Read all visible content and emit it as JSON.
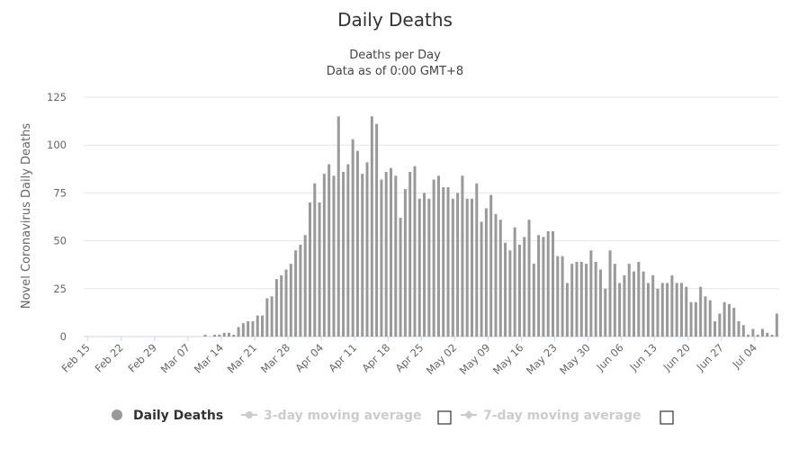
{
  "chart_data": {
    "type": "bar",
    "title": "Daily Deaths",
    "subtitle": [
      "Deaths per Day",
      "Data as of 0:00 GMT+8"
    ],
    "ylabel": "Novel Coronavirus Daily Deaths",
    "xlabel": "",
    "ylim": [
      0,
      125
    ],
    "yticks": [
      0,
      25,
      50,
      75,
      100,
      125
    ],
    "grid": true,
    "bar_color": "#999999",
    "start_date": "Feb 15",
    "xtick_labels": [
      "Feb 15",
      "Feb 22",
      "Feb 29",
      "Mar 07",
      "Mar 14",
      "Mar 21",
      "Mar 28",
      "Apr 04",
      "Apr 11",
      "Apr 18",
      "Apr 25",
      "May 02",
      "May 09",
      "May 16",
      "May 23",
      "May 30",
      "Jun 06",
      "Jun 13",
      "Jun 20",
      "Jun 27",
      "Jul 04"
    ],
    "series": [
      {
        "name": "Daily Deaths",
        "visible": true,
        "values": [
          0,
          0,
          0,
          0,
          0,
          0,
          0,
          0,
          0,
          0,
          0,
          0,
          0,
          0,
          0,
          0,
          0,
          0,
          0,
          0,
          0,
          0,
          0,
          0,
          0,
          1,
          0,
          1,
          1,
          2,
          2,
          1,
          5,
          7,
          8,
          8,
          11,
          11,
          20,
          21,
          30,
          32,
          35,
          38,
          45,
          48,
          53,
          70,
          80,
          70,
          85,
          90,
          84,
          115,
          86,
          90,
          103,
          97,
          85,
          91,
          115,
          111,
          82,
          86,
          88,
          84,
          62,
          77,
          86,
          89,
          72,
          75,
          72,
          82,
          84,
          78,
          78,
          72,
          75,
          84,
          72,
          72,
          80,
          60,
          67,
          74,
          64,
          61,
          49,
          45,
          57,
          48,
          52,
          61,
          38,
          53,
          52,
          55,
          55,
          42,
          42,
          28,
          38,
          39,
          39,
          38,
          45,
          39,
          35,
          25,
          45,
          38,
          28,
          32,
          38,
          34,
          39,
          34,
          28,
          32,
          25,
          28,
          28,
          32,
          28,
          28,
          26,
          18,
          18,
          26,
          21,
          19,
          8,
          12,
          18,
          17,
          15,
          8,
          6,
          1,
          4,
          1,
          4,
          2,
          1,
          12
        ]
      },
      {
        "name": "3-day moving average",
        "visible": false
      },
      {
        "name": "7-day moving average",
        "visible": false
      }
    ],
    "legend": {
      "placement": "bottom",
      "active_color": "#999999",
      "inactive_color": "#cccccc"
    }
  }
}
